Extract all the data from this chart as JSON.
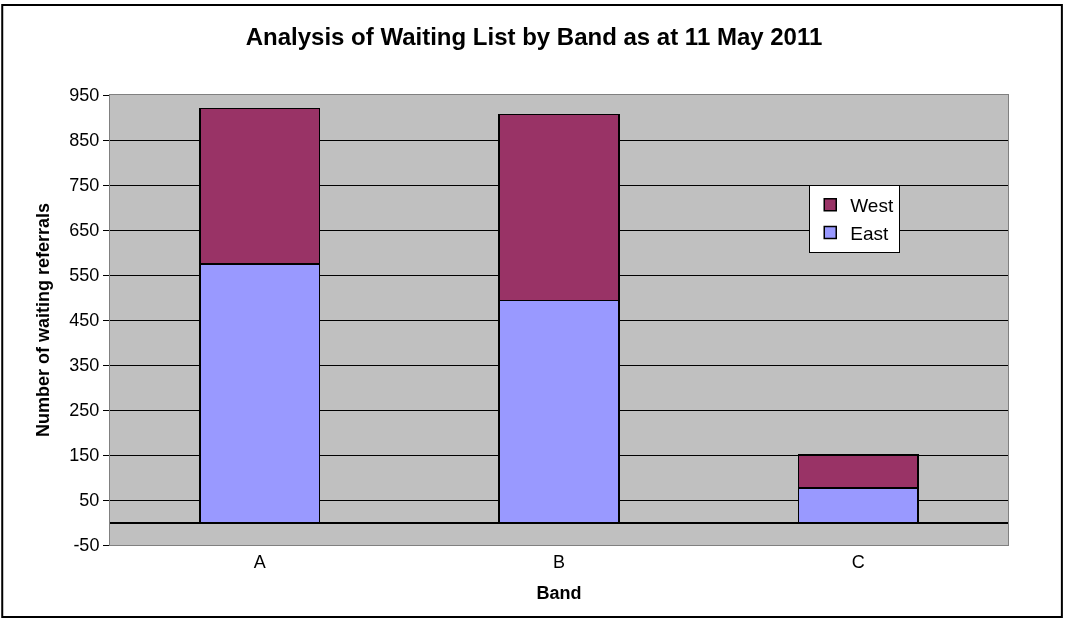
{
  "chart_data": {
    "type": "bar",
    "title": "Analysis of Waiting List by Band as at 11 May 2011",
    "xlabel": "Band",
    "ylabel": "Number of waiting referrals",
    "categories": [
      "A",
      "B",
      "C"
    ],
    "stacked": true,
    "series": [
      {
        "name": "East",
        "color": "#9999ff",
        "values": [
          575,
          493,
          77
        ]
      },
      {
        "name": "West",
        "color": "#993366",
        "values": [
          345,
          414,
          73
        ]
      }
    ],
    "ylim": [
      -50,
      950
    ],
    "yticks": [
      -50,
      50,
      150,
      250,
      350,
      450,
      550,
      650,
      750,
      850,
      950
    ],
    "grid": "y",
    "legend": "top right"
  }
}
